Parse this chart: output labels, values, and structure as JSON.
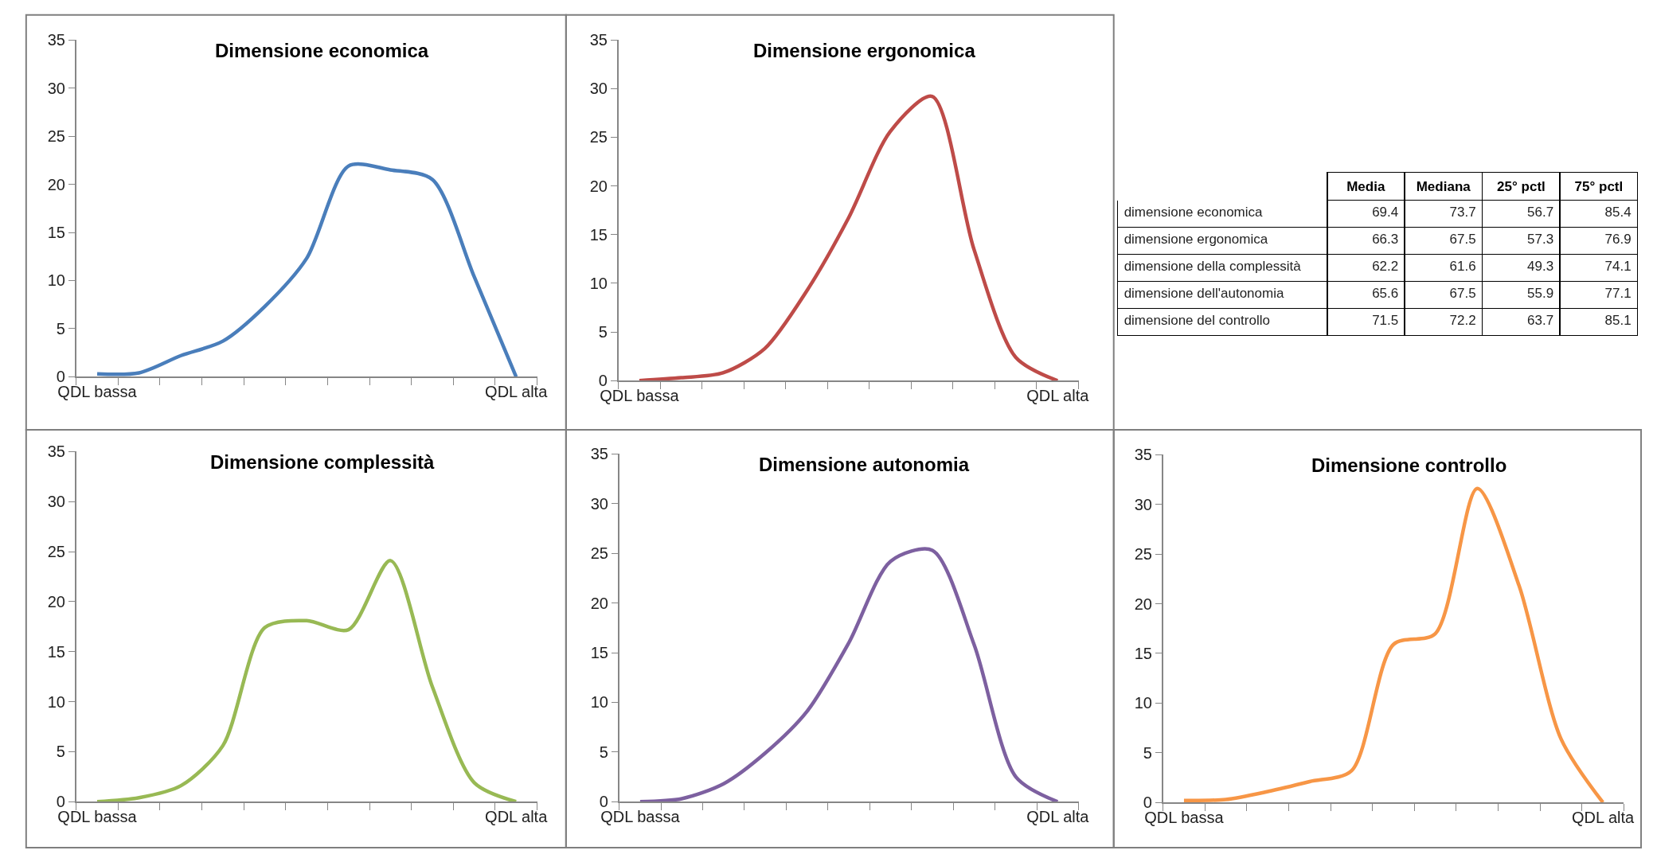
{
  "chart_data": [
    {
      "type": "line",
      "title": "Dimensione economica",
      "categories": [
        "QDL bassa",
        null,
        null,
        null,
        null,
        null,
        null,
        null,
        null,
        null,
        "QDL alta"
      ],
      "values": [
        0.3,
        0.4,
        2.2,
        3.7,
        7.3,
        12.3,
        21.9,
        21.5,
        20.5,
        10.4,
        0
      ],
      "color": "#4a7ebb",
      "ylim": [
        0,
        35
      ],
      "yticks": [
        0,
        5,
        10,
        15,
        20,
        25,
        30,
        35
      ]
    },
    {
      "type": "line",
      "title": "Dimensione ergonomica",
      "categories": [
        "QDL bassa",
        null,
        null,
        null,
        null,
        null,
        null,
        null,
        null,
        null,
        "QDL alta"
      ],
      "values": [
        0,
        0.3,
        0.8,
        3.3,
        9.2,
        16.7,
        25.6,
        29.2,
        13.5,
        2.4,
        0
      ],
      "color": "#be4b48",
      "ylim": [
        0,
        35
      ],
      "yticks": [
        0,
        5,
        10,
        15,
        20,
        25,
        30,
        35
      ]
    },
    {
      "type": "other",
      "categories": [
        "Media",
        "Mediana",
        "25° pctl",
        "75° pctl"
      ],
      "y_categories": [
        "dimensione economica",
        "dimensione ergonomica",
        "dimensione della complessità",
        "dimensione dell'autonomia",
        "dimensione del controllo"
      ],
      "cell_labels": [
        [
          "69.4",
          "73.7",
          "56.7",
          "85.4"
        ],
        [
          "66.3",
          "67.5",
          "57.3",
          "76.9"
        ],
        [
          "62.2",
          "61.6",
          "49.3",
          "74.1"
        ],
        [
          "65.6",
          "67.5",
          "55.9",
          "77.1"
        ],
        [
          "71.5",
          "72.2",
          "63.7",
          "85.1"
        ]
      ]
    },
    {
      "type": "line",
      "title": "Dimensione complessità",
      "categories": [
        "QDL bassa",
        null,
        null,
        null,
        null,
        null,
        null,
        null,
        null,
        null,
        "QDL alta"
      ],
      "values": [
        0,
        0.4,
        1.6,
        5.6,
        17.4,
        18.1,
        17.2,
        24.1,
        11.5,
        1.9,
        0
      ],
      "color": "#98b954",
      "ylim": [
        0,
        35
      ],
      "yticks": [
        0,
        5,
        10,
        15,
        20,
        25,
        30,
        35
      ]
    },
    {
      "type": "line",
      "title": "Dimensione autonomia",
      "categories": [
        "QDL bassa",
        null,
        null,
        null,
        null,
        null,
        null,
        null,
        null,
        null,
        "QDL alta"
      ],
      "values": [
        0,
        0.3,
        1.8,
        4.9,
        9.1,
        16.0,
        24.2,
        25.3,
        15.8,
        2.5,
        0
      ],
      "color": "#7d60a0",
      "ylim": [
        0,
        35
      ],
      "yticks": [
        0,
        5,
        10,
        15,
        20,
        25,
        30,
        35
      ]
    },
    {
      "type": "line",
      "title": "Dimensione controllo",
      "categories": [
        "QDL bassa",
        null,
        null,
        null,
        null,
        null,
        null,
        null,
        null,
        null,
        "QDL alta"
      ],
      "values": [
        0.2,
        0.3,
        1.1,
        2.1,
        3.2,
        15.9,
        17.0,
        31.6,
        21.8,
        6.4,
        0
      ],
      "color": "#f79646",
      "ylim": [
        0,
        35
      ],
      "yticks": [
        0,
        5,
        10,
        15,
        20,
        25,
        30,
        35
      ]
    }
  ]
}
